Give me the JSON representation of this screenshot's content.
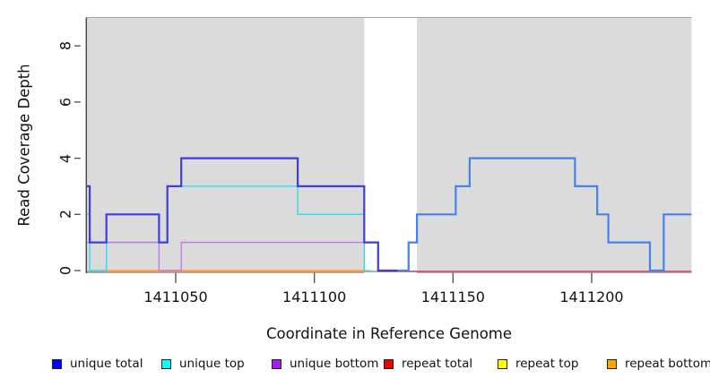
{
  "chart_data": {
    "type": "line",
    "step_style": "step-after",
    "title": "",
    "xlabel": "Coordinate in Reference Genome",
    "ylabel": "Read Coverage Depth",
    "xlim": [
      1411018,
      1411236
    ],
    "ylim": [
      0,
      9
    ],
    "grid": false,
    "x_ticks": [
      {
        "value": 1411050,
        "label": "1411050"
      },
      {
        "value": 1411100,
        "label": "1411100"
      },
      {
        "value": 1411150,
        "label": "1411150"
      },
      {
        "value": 1411200,
        "label": "1411200"
      }
    ],
    "y_ticks": [
      {
        "value": 0,
        "label": "0"
      },
      {
        "value": 2,
        "label": "2"
      },
      {
        "value": 4,
        "label": "4"
      },
      {
        "value": 6,
        "label": "6"
      },
      {
        "value": 8,
        "label": "8"
      }
    ],
    "background_bands": [
      {
        "from": 1411018,
        "to": 1411118,
        "color": "#DBDBDB"
      },
      {
        "from": 1411137,
        "to": 1411236,
        "color": "#DBDBDB"
      }
    ],
    "series": [
      {
        "name": "unique total",
        "color": "#0000FF",
        "steps": [
          [
            1411018,
            3
          ],
          [
            1411019,
            1
          ],
          [
            1411025,
            2
          ],
          [
            1411044,
            1
          ],
          [
            1411047,
            3
          ],
          [
            1411052,
            4
          ],
          [
            1411094,
            3
          ],
          [
            1411118,
            1
          ],
          [
            1411123,
            0
          ],
          [
            1411134,
            1
          ],
          [
            1411137,
            2
          ],
          [
            1411151,
            3
          ],
          [
            1411156,
            4
          ],
          [
            1411194,
            3
          ],
          [
            1411202,
            2
          ],
          [
            1411206,
            1
          ],
          [
            1411221,
            0
          ],
          [
            1411226,
            2
          ]
        ],
        "end": 1411236
      },
      {
        "name": "unique top",
        "color": "#00FFFF",
        "steps": [
          [
            1411018,
            2
          ],
          [
            1411019,
            0
          ],
          [
            1411025,
            1
          ],
          [
            1411047,
            3
          ],
          [
            1411094,
            2
          ],
          [
            1411118,
            0
          ],
          [
            1411134,
            1
          ],
          [
            1411137,
            2
          ],
          [
            1411151,
            3
          ],
          [
            1411156,
            4
          ],
          [
            1411194,
            3
          ],
          [
            1411202,
            2
          ],
          [
            1411206,
            1
          ],
          [
            1411221,
            0
          ],
          [
            1411226,
            2
          ]
        ],
        "end": 1411236
      },
      {
        "name": "unique bottom",
        "color": "#A020F0",
        "steps": [
          [
            1411018,
            1
          ],
          [
            1411044,
            0
          ],
          [
            1411052,
            1
          ],
          [
            1411123,
            0
          ]
        ],
        "end": 1411236
      },
      {
        "name": "repeat total",
        "color": "#FF0000",
        "steps": [
          [
            1411018,
            0
          ]
        ],
        "end": 1411236
      },
      {
        "name": "repeat top",
        "color": "#FFFF00",
        "steps": [
          [
            1411018,
            0
          ]
        ],
        "end": 1411236
      },
      {
        "name": "repeat bottom",
        "color": "#FFA500",
        "steps": [
          [
            1411018,
            0
          ]
        ],
        "end": 1411236
      }
    ],
    "legend": [
      {
        "label": "unique total",
        "color": "#0000FF"
      },
      {
        "label": "unique top",
        "color": "#00FFFF"
      },
      {
        "label": "unique bottom",
        "color": "#A020F0"
      },
      {
        "label": "repeat total",
        "color": "#EE0000"
      },
      {
        "label": "repeat top",
        "color": "#FFFF00"
      },
      {
        "label": "repeat bottom",
        "color": "#FFA500"
      }
    ],
    "legend_position": "bottom"
  },
  "render": {
    "axis_color": "#4A4A4A",
    "band_top_edge_color": "#A3A3A3",
    "strokes": [
      {
        "name": "repeat-total-line",
        "color": "#CC3962",
        "width": 1.4,
        "dy": 1,
        "steps": [
          [
            1411018,
            0
          ]
        ],
        "end": 1411236
      },
      {
        "name": "repeat-bottom-line",
        "color": "#FF9C1C",
        "width": 2.0,
        "dy": 0.5,
        "steps": [
          [
            1411025,
            0
          ]
        ],
        "end": 1411118
      },
      {
        "name": "baseline-accent-left",
        "color": "#8BD89B",
        "width": 1.6,
        "dy": 0.5,
        "steps": [
          [
            1411018,
            0
          ]
        ],
        "end": 1411025
      },
      {
        "name": "baseline-accent-gap",
        "color": "#8BD89B",
        "width": 1.6,
        "dy": 0.5,
        "steps": [
          [
            1411118,
            0
          ]
        ],
        "end": 1411123
      },
      {
        "name": "unique-top-line",
        "color": "#30DCEC",
        "width": 1.4,
        "dy": 0,
        "steps": [
          [
            1411018,
            2
          ],
          [
            1411019,
            0
          ],
          [
            1411025,
            1
          ],
          [
            1411047,
            3
          ],
          [
            1411094,
            2
          ],
          [
            1411118,
            0
          ]
        ],
        "end": 1411120
      },
      {
        "name": "unique-bottom-line",
        "color": "#BE7BE4",
        "width": 1.4,
        "dy": 0,
        "steps": [
          [
            1411018,
            1
          ],
          [
            1411044,
            0
          ],
          [
            1411052,
            1
          ],
          [
            1411123,
            0
          ]
        ],
        "end": 1411126
      },
      {
        "name": "unique-total-line-left",
        "color": "#3D3DE0",
        "width": 2.2,
        "dy": 0,
        "steps": [
          [
            1411018,
            3
          ],
          [
            1411019,
            1
          ],
          [
            1411025,
            2
          ],
          [
            1411044,
            1
          ],
          [
            1411047,
            3
          ],
          [
            1411052,
            4
          ],
          [
            1411094,
            3
          ],
          [
            1411118,
            1
          ],
          [
            1411123,
            0
          ]
        ],
        "end": 1411130
      },
      {
        "name": "unique-total-line-right",
        "color": "#4483EA",
        "width": 2.2,
        "dy": 0,
        "steps": [
          [
            1411130,
            0
          ],
          [
            1411134,
            1
          ],
          [
            1411137,
            2
          ],
          [
            1411151,
            3
          ],
          [
            1411156,
            4
          ],
          [
            1411194,
            3
          ],
          [
            1411202,
            2
          ],
          [
            1411206,
            1
          ],
          [
            1411221,
            0
          ],
          [
            1411226,
            2
          ]
        ],
        "end": 1411236
      }
    ]
  }
}
